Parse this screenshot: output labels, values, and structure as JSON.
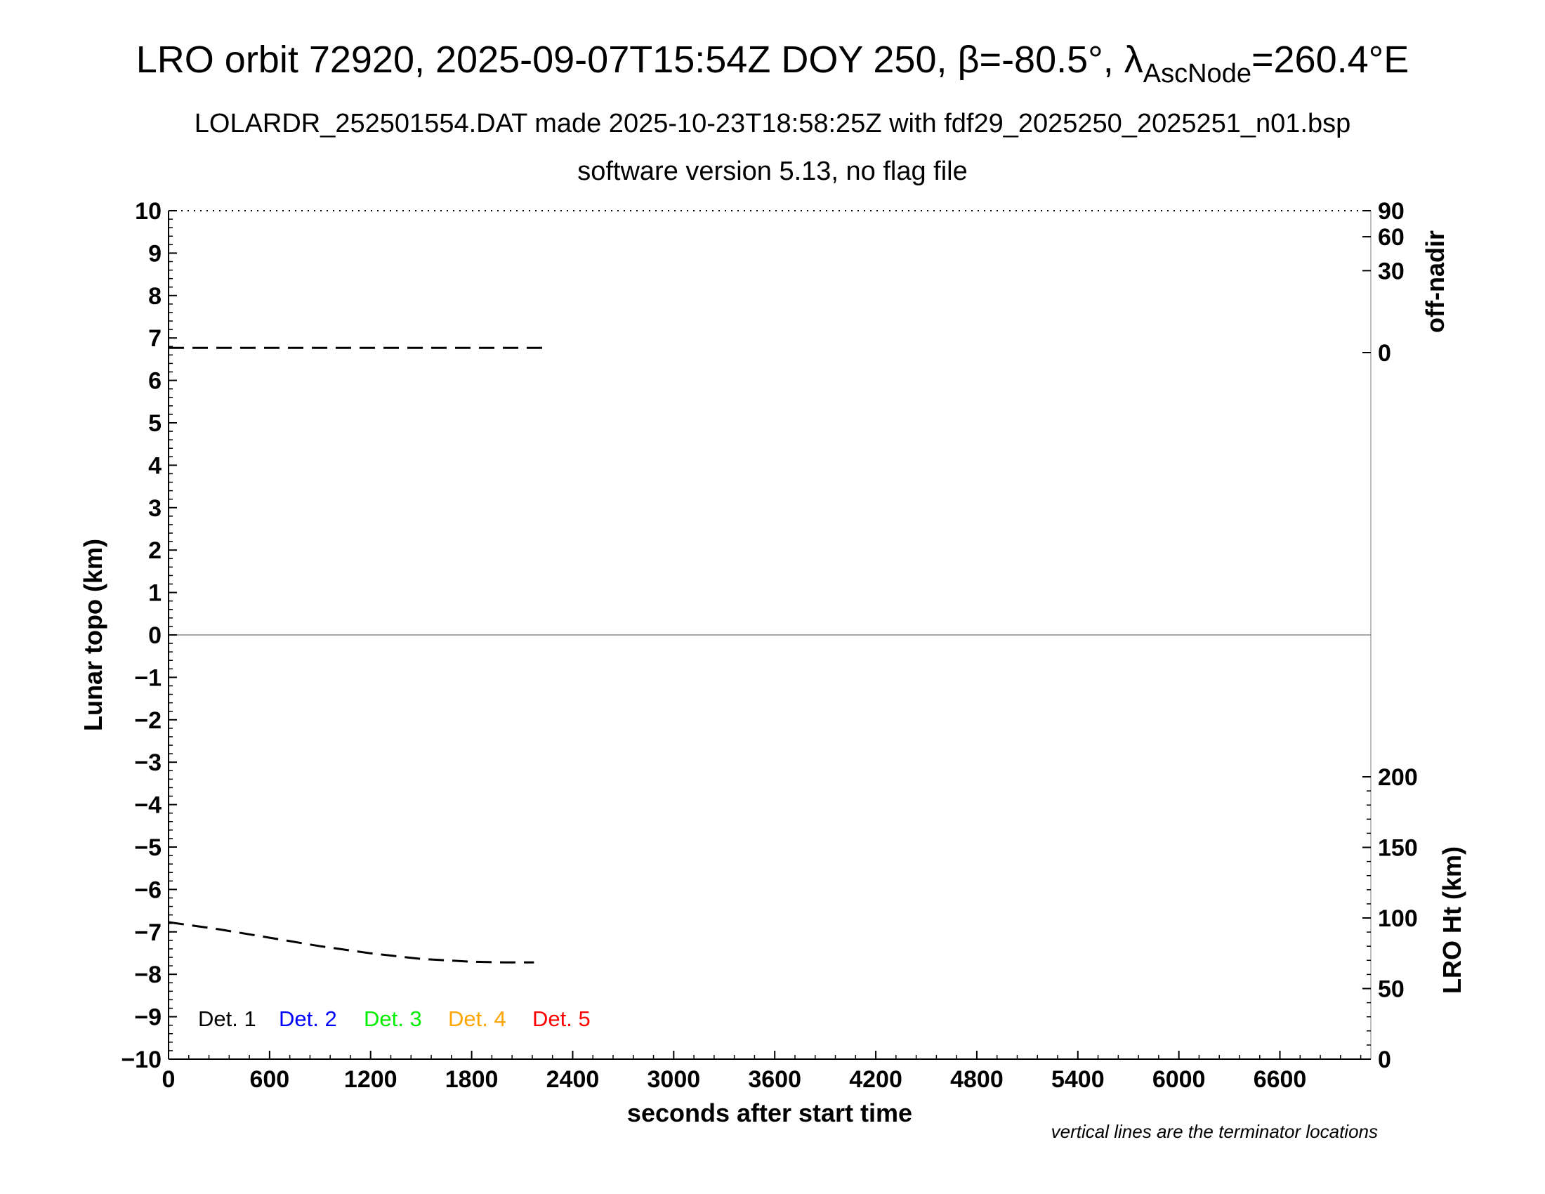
{
  "header": {
    "title_main": "LRO orbit 72920, 2025-09-07T15:54Z DOY 250, β=-80.5°, λ",
    "title_sub": "AscNode",
    "title_end": "=260.4°E",
    "line2": "LOLARDR_252501554.DAT made 2025-10-23T18:58:25Z with fdf29_2025250_2025251_n01.bsp",
    "line3": "software version 5.13, no flag file"
  },
  "footer_note": "vertical lines are the terminator locations",
  "chart_data": {
    "type": "line",
    "xlabel": "seconds after start time",
    "ylabel": "Lunar topo (km)",
    "xlim": [
      0,
      7140
    ],
    "ylim": [
      -10,
      10
    ],
    "x_ticks": [
      0,
      600,
      1200,
      1800,
      2400,
      3000,
      3600,
      4200,
      4800,
      5400,
      6000,
      6600
    ],
    "y_ticks": [
      10,
      9,
      8,
      7,
      6,
      5,
      4,
      3,
      2,
      1,
      0,
      -1,
      -2,
      -3,
      -4,
      -5,
      -6,
      -7,
      -8,
      -9,
      -10
    ],
    "y_tick_labels": [
      "10",
      "9",
      "8",
      "7",
      "6",
      "5",
      "4",
      "3",
      "2",
      "1",
      "0",
      "−1",
      "−2",
      "−3",
      "−4",
      "−5",
      "−6",
      "−7",
      "−8",
      "−9",
      "−10"
    ],
    "right_top_axis": {
      "label": "off-nadir",
      "ticks": [
        90,
        60,
        30,
        0
      ],
      "tick_labels": [
        "90",
        "60",
        "30",
        "0"
      ]
    },
    "right_bottom_axis": {
      "label": "LRO Ht (km)",
      "range": [
        0,
        200
      ],
      "ticks": [
        200,
        150,
        100,
        50,
        0
      ],
      "tick_labels": [
        "200",
        "150",
        "100",
        "50",
        "0"
      ]
    },
    "legend": [
      {
        "label": "Det. 1",
        "color": "#000000"
      },
      {
        "label": "Det. 2",
        "color": "#0000ff"
      },
      {
        "label": "Det. 3",
        "color": "#00ee00"
      },
      {
        "label": "Det. 4",
        "color": "#ffa500"
      },
      {
        "label": "Det. 5",
        "color": "#ff0000"
      }
    ],
    "series": [
      {
        "axis": "off-nadir",
        "style": "dashed",
        "color": "#000000",
        "x": [
          0,
          2220
        ],
        "y": [
          0.1,
          0.1
        ]
      },
      {
        "axis": "LRO Ht (km)",
        "style": "dashed",
        "color": "#000000",
        "x": [
          0,
          300,
          600,
          900,
          1200,
          1500,
          1800,
          2000,
          2170
        ],
        "y": [
          97,
          92,
          86,
          80,
          75,
          71,
          69,
          68.5,
          68.5
        ]
      }
    ],
    "zero_line": 0,
    "grid": false
  }
}
